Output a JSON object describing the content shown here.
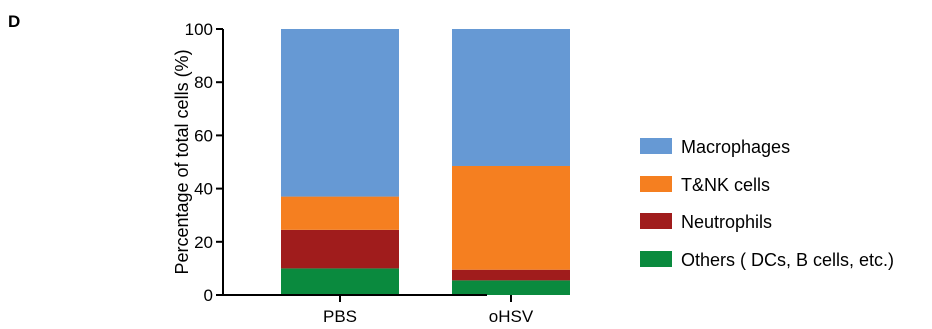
{
  "panel_label": "D",
  "chart_data": {
    "type": "bar",
    "stacked": true,
    "categories": [
      "PBS",
      "oHSV"
    ],
    "series": [
      {
        "name": "Others ( DCs, B cells, etc.)",
        "values": [
          10,
          5.5
        ],
        "color": "#0a8a3e"
      },
      {
        "name": "Neutrophils",
        "values": [
          14.5,
          4
        ],
        "color": "#a01c1c"
      },
      {
        "name": "T&NK cells",
        "values": [
          12.5,
          39
        ],
        "color": "#f57f20"
      },
      {
        "name": "Macrophages",
        "values": [
          63,
          51.5
        ],
        "color": "#6699d4"
      }
    ],
    "legend_order": [
      "Macrophages",
      "T&NK cells",
      "Neutrophils",
      "Others ( DCs, B cells, etc.)"
    ],
    "title": "",
    "xlabel": "",
    "ylabel": "Percentage of total cells (%)",
    "ylim": [
      0,
      100
    ],
    "yticks": [
      0,
      20,
      40,
      60,
      80,
      100
    ],
    "grid": false,
    "legend_position": "right"
  }
}
